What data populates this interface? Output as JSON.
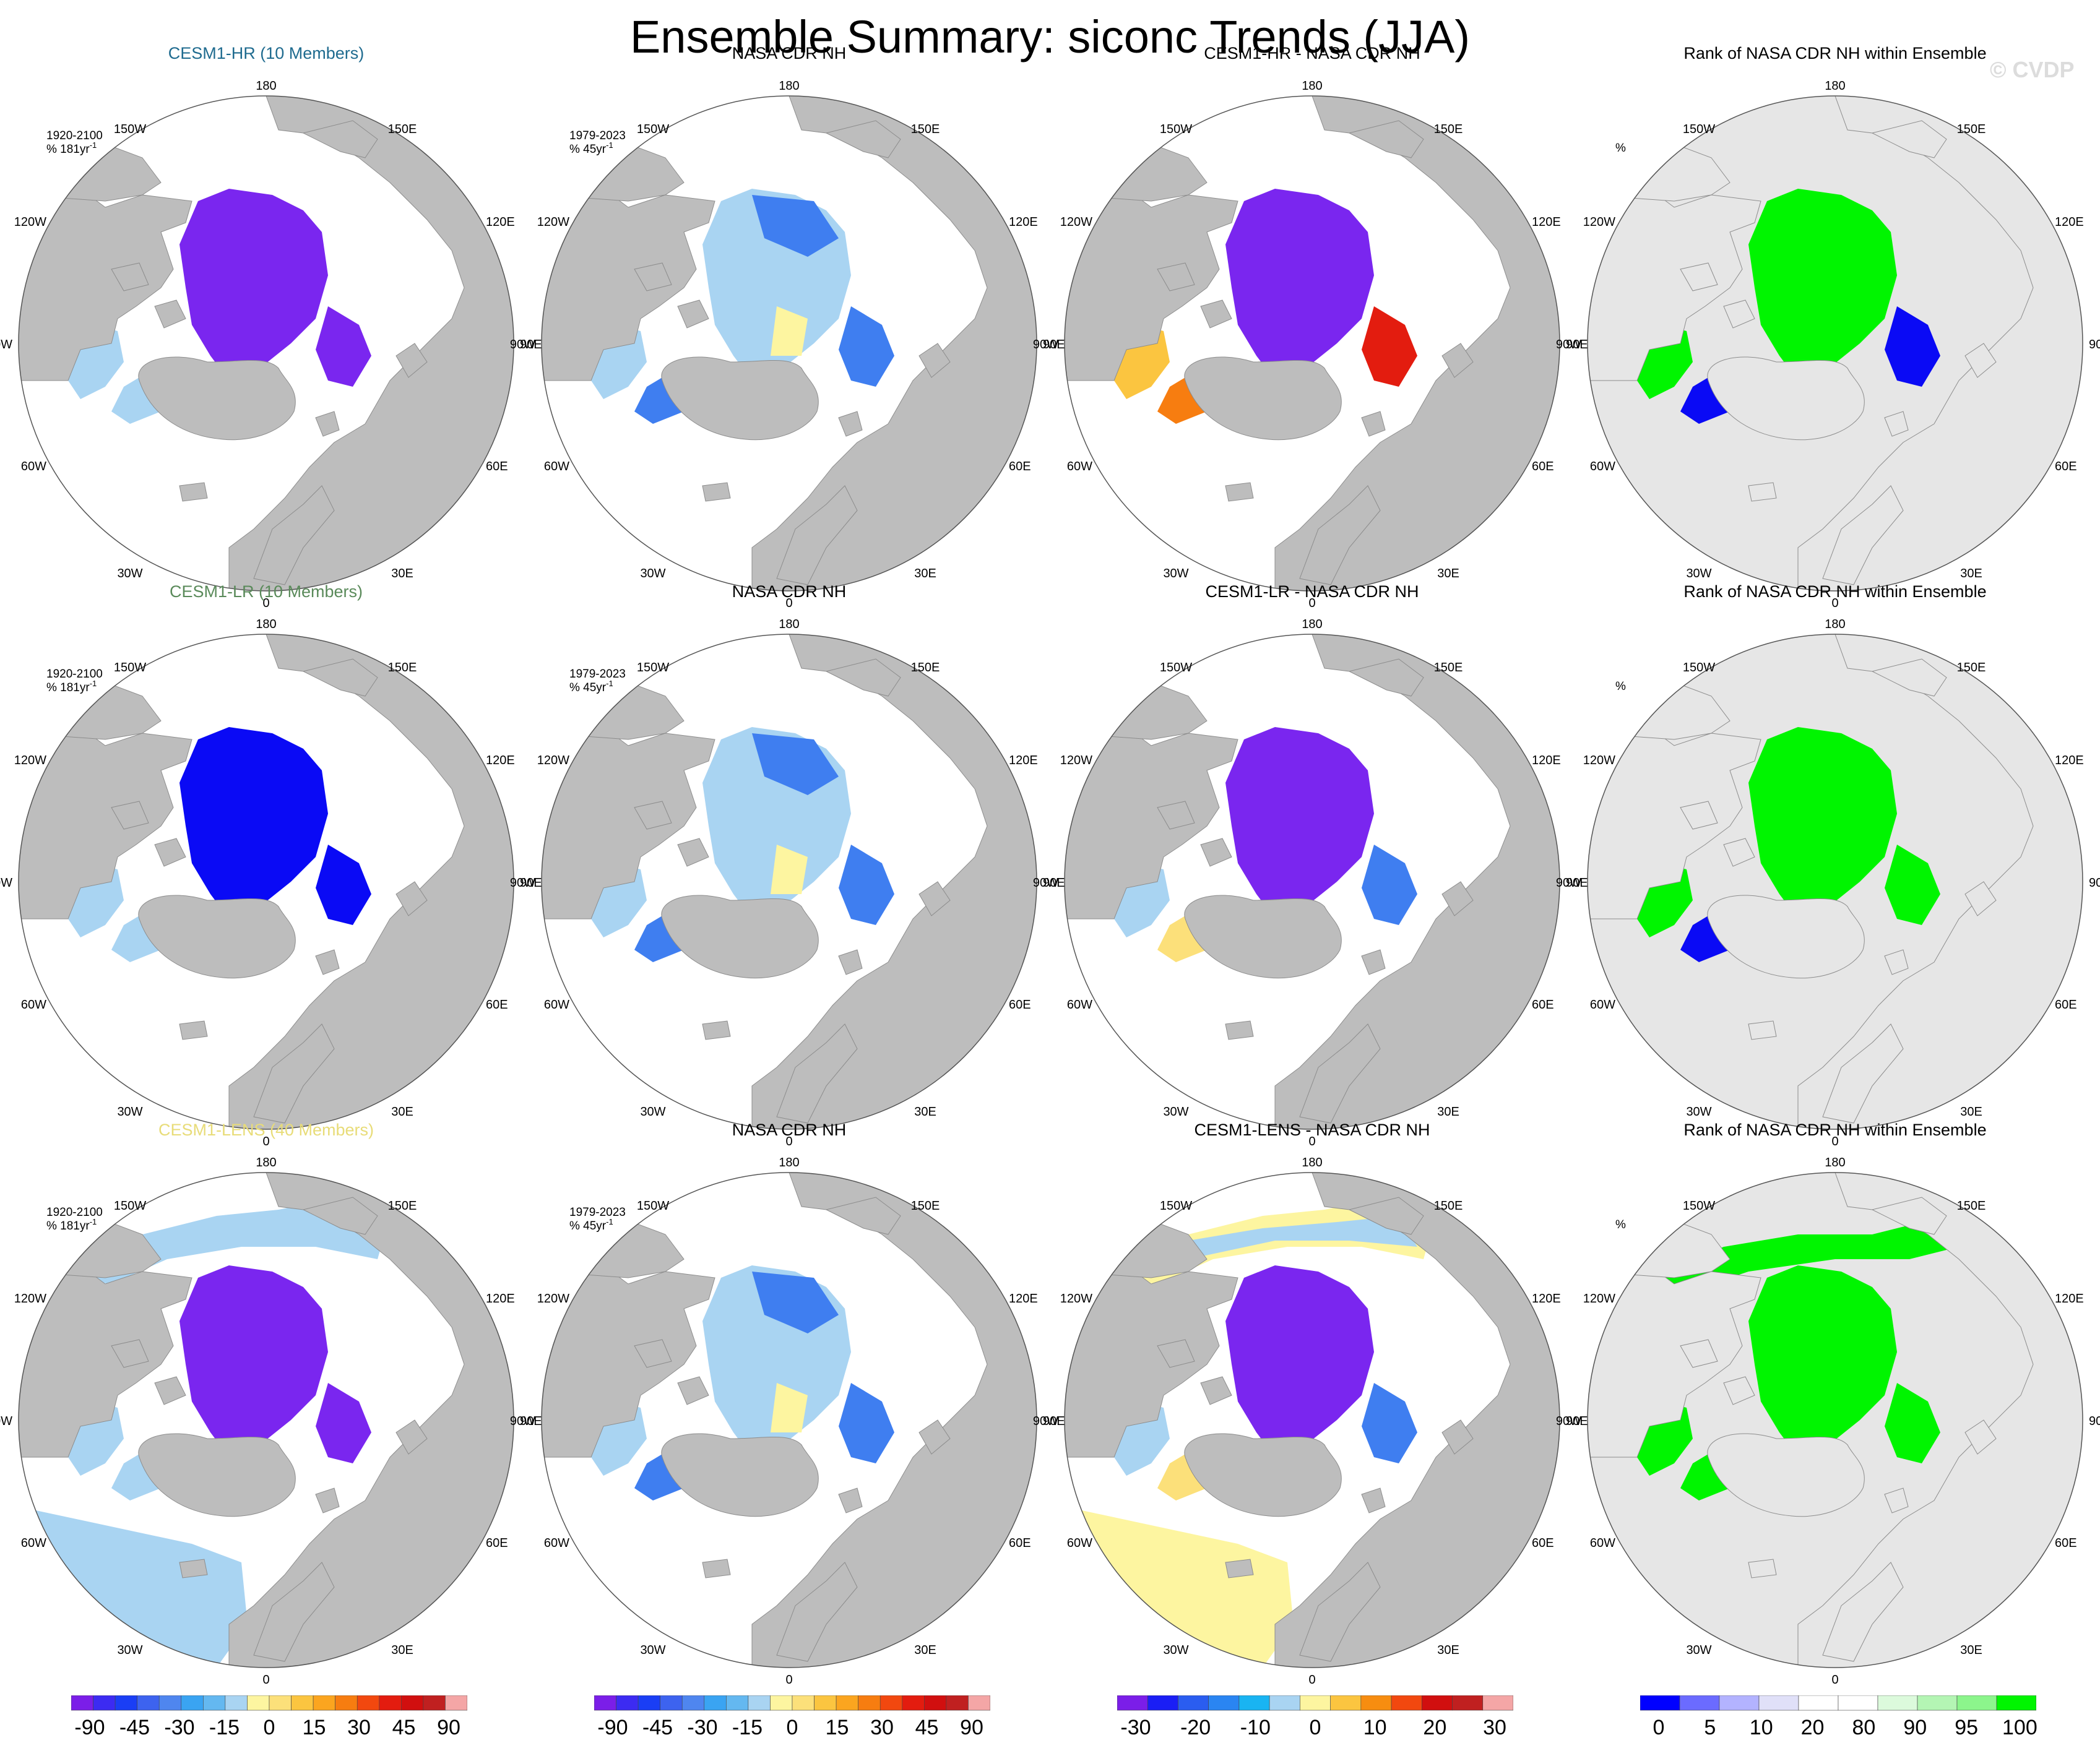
{
  "title": "Ensemble Summary: siconc Trends (JJA)",
  "watermark": "© CVDP",
  "colors": {
    "land": "#bdbdbd",
    "rank_land": "#e6e6e6",
    "ice_blue": "#3f7ef0",
    "ice_purple": "#7a26ef",
    "ice_deep_blue": "#0a0af5",
    "ice_light": "#a9d4f2",
    "pale_yellow": "#fdf5a0",
    "rank_green": "#00f500"
  },
  "chart_data": {
    "type": "heatmap",
    "variable": "siconc",
    "season": "JJA",
    "rows": [
      {
        "model_title": "CESM1-HR (10 Members)",
        "model_color": "#1f6b8f",
        "obs_title": "NASA CDR NH",
        "diff_title": "CESM1-HR - NASA CDR NH",
        "rank_title": "Rank of NASA CDR NH within Ensemble",
        "model_period": "1920-2100",
        "model_units": "% 181yr",
        "obs_period": "1979-2023",
        "obs_units": "% 45yr",
        "superscript": "-1",
        "rank_units": "%"
      },
      {
        "model_title": "CESM1-LR (10 Members)",
        "model_color": "#5a8a5a",
        "obs_title": "NASA CDR NH",
        "diff_title": "CESM1-LR - NASA CDR NH",
        "rank_title": "Rank of NASA CDR NH within Ensemble",
        "model_period": "1920-2100",
        "model_units": "% 181yr",
        "obs_period": "1979-2023",
        "obs_units": "% 45yr",
        "superscript": "-1",
        "rank_units": "%"
      },
      {
        "model_title": "CESM1-LENS (40 Members)",
        "model_color": "#e8dc78",
        "obs_title": "NASA CDR NH",
        "diff_title": "CESM1-LENS - NASA CDR NH",
        "rank_title": "Rank of NASA CDR NH within Ensemble",
        "model_period": "1920-2100",
        "model_units": "% 181yr",
        "obs_period": "1979-2023",
        "obs_units": "% 45yr",
        "superscript": "-1",
        "rank_units": "%"
      }
    ],
    "map_labels": {
      "top": "180",
      "bottom": "0",
      "upper_left": "150W",
      "upper_right": "150E",
      "mid_upper_left": "120W",
      "mid_upper_right": "120E",
      "left": "90W",
      "right": "90E",
      "mid_lower_left": "60W",
      "mid_lower_right": "60E",
      "lower_left": "30W",
      "lower_right": "30E"
    },
    "colorbars": [
      {
        "name": "trend",
        "colors": [
          "#7b1ee8",
          "#3c2bf2",
          "#1a3ef5",
          "#3d63ef",
          "#4f86ef",
          "#3aa4f2",
          "#64b8f0",
          "#a9d4f2",
          "#fdf5a0",
          "#fce07a",
          "#fbc540",
          "#fba51f",
          "#f77d10",
          "#f2480f",
          "#e31c0f",
          "#d10f0f",
          "#c02020",
          "#f4a6a6"
        ],
        "labels": [
          "-90",
          "-45",
          "-30",
          "-15",
          "0",
          "15",
          "30",
          "45",
          "90"
        ]
      },
      {
        "name": "obs_trend",
        "colors": [
          "#7b1ee8",
          "#3c2bf2",
          "#1a3ef5",
          "#3d63ef",
          "#4f86ef",
          "#3aa4f2",
          "#64b8f0",
          "#a9d4f2",
          "#fdf5a0",
          "#fce07a",
          "#fbc540",
          "#fba51f",
          "#f77d10",
          "#f2480f",
          "#e31c0f",
          "#d10f0f",
          "#c02020",
          "#f4a6a6"
        ],
        "labels": [
          "-90",
          "-45",
          "-30",
          "-15",
          "0",
          "15",
          "30",
          "45",
          "90"
        ]
      },
      {
        "name": "difference",
        "colors": [
          "#7b1ee8",
          "#1a1ef5",
          "#2a5df0",
          "#2a85f2",
          "#19b4f2",
          "#a9d4f2",
          "#fdf5a0",
          "#fbc540",
          "#f78d10",
          "#f2480f",
          "#d10f0f",
          "#c02020",
          "#f4a6a6"
        ],
        "labels": [
          "-30",
          "-20",
          "-10",
          "0",
          "10",
          "20",
          "30"
        ]
      },
      {
        "name": "rank",
        "colors": [
          "#0000ff",
          "#6b6bff",
          "#b3b3ff",
          "#e0e0f8",
          "#ffffff",
          "#ffffff",
          "#dcfadc",
          "#b4f5b4",
          "#8cf58c",
          "#00f500"
        ],
        "labels": [
          "0",
          "5",
          "10",
          "20",
          "80",
          "90",
          "95",
          "100"
        ]
      }
    ]
  }
}
